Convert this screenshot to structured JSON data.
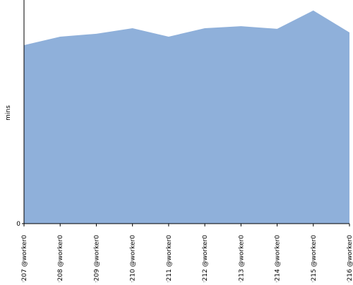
{
  "chart_data": {
    "type": "area",
    "y_label": "mins",
    "categories": [
      "#207 @worker0",
      "#208 @worker0",
      "#209 @worker0",
      "#210 @worker0",
      "#211 @worker0",
      "#212 @worker0",
      "#213 @worker0",
      "#214 @worker0",
      "#215 @worker0",
      "#216 @worker0"
    ],
    "values": [
      79.8,
      83.6,
      84.9,
      87.4,
      83.6,
      87.4,
      88.3,
      87.1,
      95.3,
      85.5
    ],
    "color": "#8fb0da",
    "ylim": [
      0,
      100
    ],
    "yticks": [
      0
    ]
  }
}
